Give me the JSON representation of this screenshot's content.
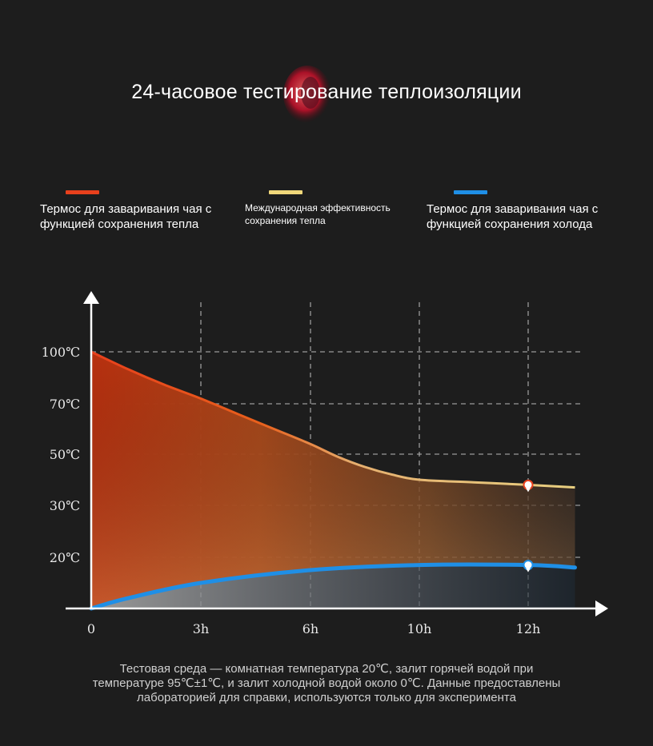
{
  "title": "24-часовое тестирование теплоизоляции",
  "legend": [
    {
      "key": "hot",
      "color": "#e8401c",
      "label_line1": "Термос для заваривания чая с",
      "label_line2": "функцией сохранения тепла"
    },
    {
      "key": "intl",
      "color": "#f0d87a",
      "label_line1": "Международная эффективность",
      "label_line2": "сохранения тепла"
    },
    {
      "key": "cold",
      "color": "#1f8fe6",
      "label_line1": "Термос для заваривания чая с",
      "label_line2": "функцией сохранения холода"
    }
  ],
  "chart_data": {
    "type": "area",
    "x_ticks": [
      "0",
      "3h",
      "6h",
      "10h",
      "12h"
    ],
    "y_ticks": [
      "20℃",
      "30℃",
      "50℃",
      "70℃",
      "100℃"
    ],
    "grid": "dashed",
    "series": [
      {
        "name": "Термос для заваривания чая с функцией сохранения тепла",
        "color": "#e8401c",
        "points": [
          [
            0,
            100
          ],
          [
            1,
            90
          ],
          [
            2,
            81
          ],
          [
            3,
            73
          ],
          [
            4,
            66
          ],
          [
            5,
            60
          ],
          [
            6,
            54
          ],
          [
            7,
            49
          ],
          [
            8,
            45
          ],
          [
            9,
            42
          ],
          [
            10,
            40
          ],
          [
            11,
            39
          ],
          [
            12,
            38
          ],
          [
            12.9,
            37
          ]
        ]
      },
      {
        "name": "Термос для заваривания чая с функцией сохранения холода",
        "color": "#1f8fe6",
        "points": [
          [
            0,
            0
          ],
          [
            1,
            4
          ],
          [
            3,
            10
          ],
          [
            6,
            15
          ],
          [
            10,
            17
          ],
          [
            12,
            17
          ],
          [
            12.9,
            16
          ]
        ]
      }
    ],
    "markers": [
      {
        "series": "hot",
        "x": 12,
        "y": 38
      },
      {
        "series": "cold",
        "x": 12,
        "y": 17
      }
    ]
  },
  "footnote": "Тестовая среда — комнатная температура 20℃, залит горячей водой при\nтемпературе 95℃±1℃, и залит холодной водой около 0℃. Данные предоставлены\nлабораторией для справки, используются только для эксперимента"
}
